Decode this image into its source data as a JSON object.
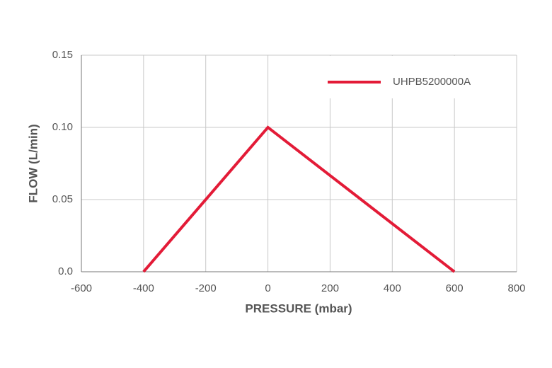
{
  "chart_data": {
    "type": "line",
    "x_label": "PRESSURE (mbar)",
    "y_label": "FLOW (L/min)",
    "series": [
      {
        "name": "UHPB5200000A",
        "color": "#e31b37",
        "x": [
          -400,
          0,
          600
        ],
        "values": [
          0,
          0.1,
          0
        ]
      }
    ],
    "xlim": [
      -600,
      800
    ],
    "xticks": [
      -600,
      -400,
      -200,
      0,
      200,
      400,
      600,
      800
    ],
    "ylim": [
      0,
      0.15
    ],
    "yticks": [
      {
        "value": 0,
        "label": "0.0"
      },
      0.05,
      {
        "value": 0.1,
        "label": "0.10"
      },
      0.15
    ],
    "grid": true,
    "legend": "upper right"
  }
}
